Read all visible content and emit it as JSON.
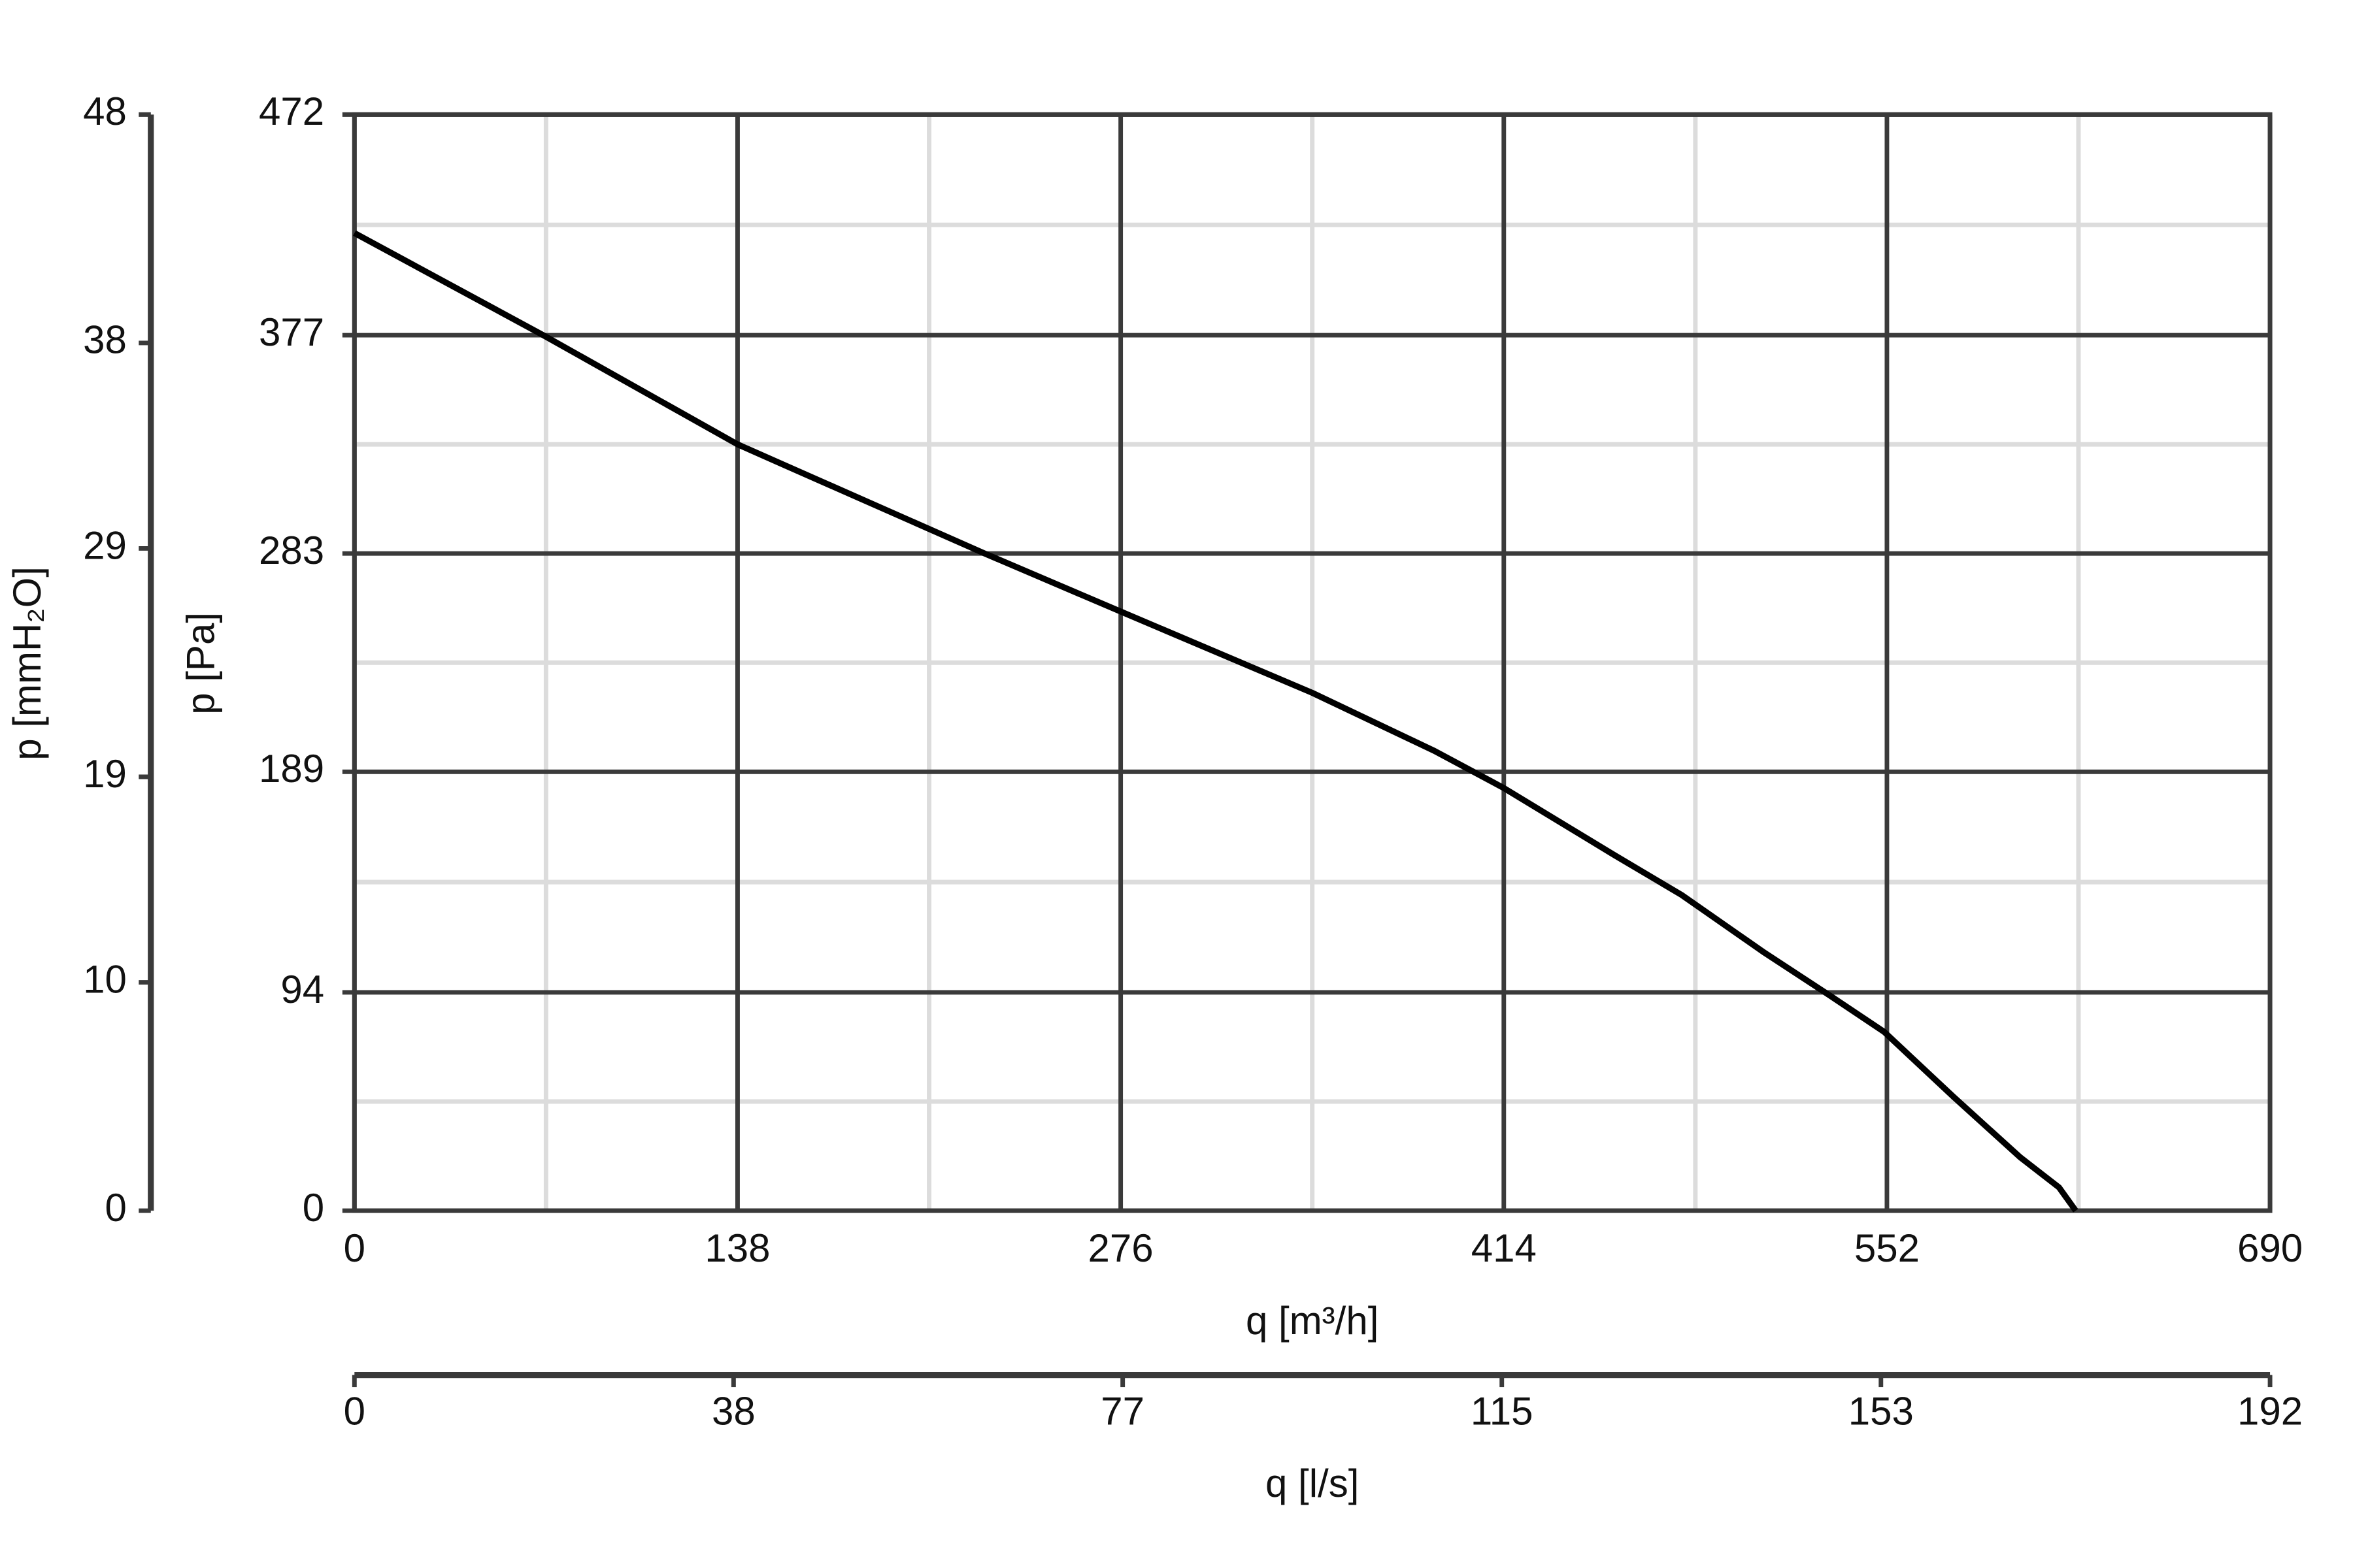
{
  "chart_data": {
    "type": "line",
    "x_label": "q [m³/h]",
    "y_label": "p [Pa]",
    "x2_label": "q [l/s]",
    "y2_label": "p [mmH₂O]",
    "x": [
      0,
      68,
      138,
      155,
      227,
      276,
      345,
      389,
      414,
      454,
      478,
      508,
      531,
      551,
      576,
      600,
      614,
      620
    ],
    "series": [
      {
        "color": "#000000",
        "values": [
          421,
          377,
          330,
          321,
          283,
          258,
          223,
          198,
          182,
          153,
          136,
          111,
          93,
          77,
          49,
          23,
          10,
          0
        ]
      }
    ],
    "xlim": [
      0,
      690
    ],
    "xticks": [
      0,
      138,
      276,
      414,
      552,
      690
    ],
    "ylim": [
      0,
      472
    ],
    "yticks": [
      0,
      94,
      189,
      283,
      377,
      472
    ],
    "x2lim": [
      0,
      192
    ],
    "x2ticks": [
      0,
      38,
      77,
      115,
      153,
      192
    ],
    "y2lim": [
      0,
      48
    ],
    "y2ticks": [
      0,
      10,
      19,
      29,
      38,
      48
    ],
    "grid": true
  }
}
